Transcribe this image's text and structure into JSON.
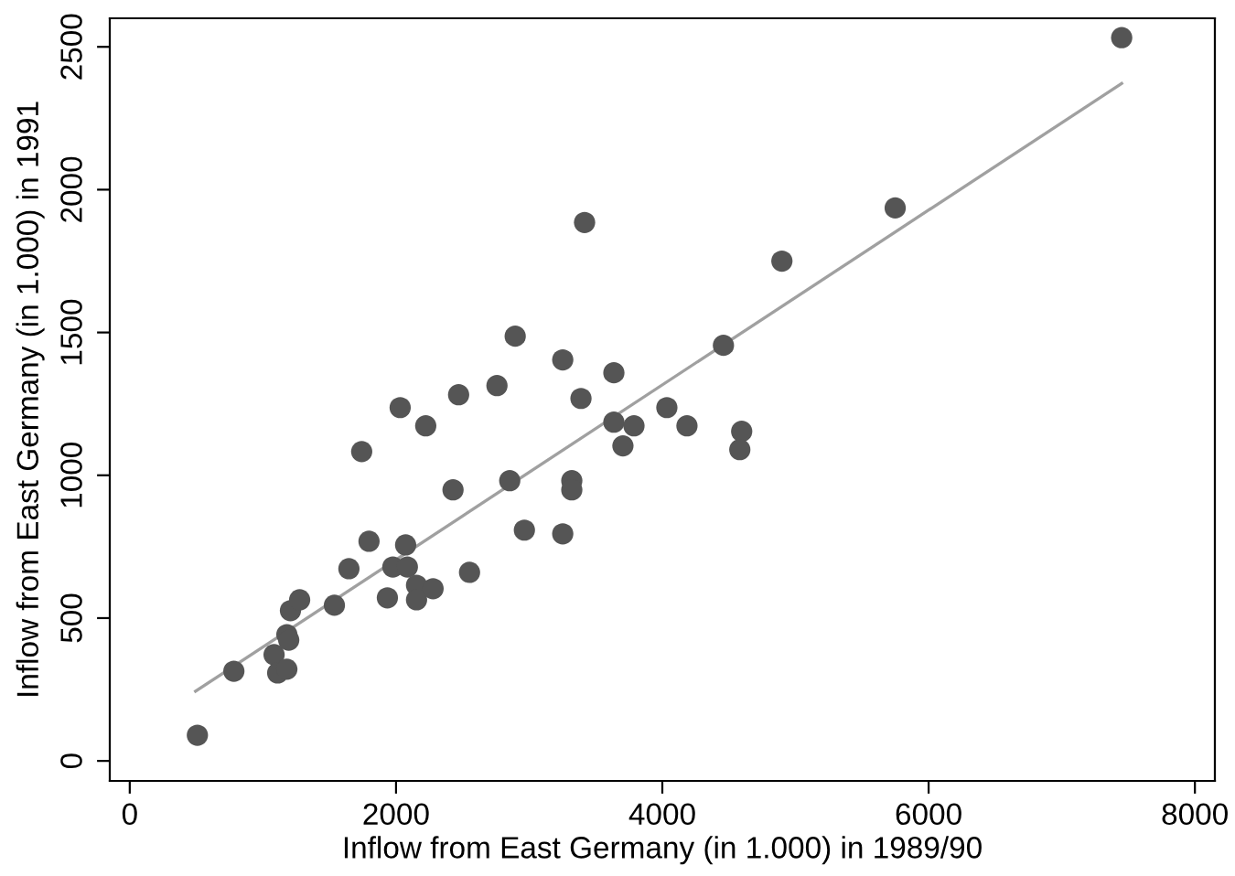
{
  "chart_data": {
    "type": "scatter",
    "xlabel": "Inflow from East Germany (in 1.000) in 1989/90",
    "ylabel": "Inflow from East Germany (in 1.000) in 1991",
    "xlim": [
      -150,
      8150
    ],
    "ylim": [
      -70,
      2600
    ],
    "xticks": [
      0,
      2000,
      4000,
      6000,
      8000
    ],
    "yticks": [
      0,
      500,
      1000,
      1500,
      2000,
      2500
    ],
    "grid": false,
    "legend": false,
    "series": [
      {
        "marker": "circle",
        "color": "#555555",
        "x": [
          508,
          782,
          1084,
          1111,
          1180,
          1180,
          1194,
          1207,
          1276,
          1537,
          1646,
          1797,
          1935,
          1742,
          2031,
          2223,
          1976,
          2085,
          2072,
          2154,
          2154,
          2278,
          2428,
          2470,
          2552,
          2758,
          2895,
          2854,
          2964,
          3252,
          3389,
          3320,
          3320,
          3252,
          3416,
          3636,
          3636,
          3787,
          3704,
          4034,
          4185,
          4596,
          4582,
          4459,
          4898,
          5749,
          7450
        ],
        "values": [
          90,
          314,
          372,
          308,
          321,
          442,
          423,
          526,
          564,
          545,
          673,
          769,
          571,
          1083,
          1237,
          1173,
          679,
          679,
          756,
          615,
          564,
          603,
          949,
          1282,
          660,
          1314,
          1487,
          981,
          808,
          1404,
          1269,
          981,
          949,
          795,
          1885,
          1359,
          1186,
          1173,
          1103,
          1237,
          1173,
          1154,
          1090,
          1455,
          1750,
          1936,
          2532
        ]
      },
      {
        "type": "line",
        "color": "#a0a0a0",
        "x": [
          494,
          7450
        ],
        "values": [
          244,
          2372
        ]
      }
    ]
  }
}
